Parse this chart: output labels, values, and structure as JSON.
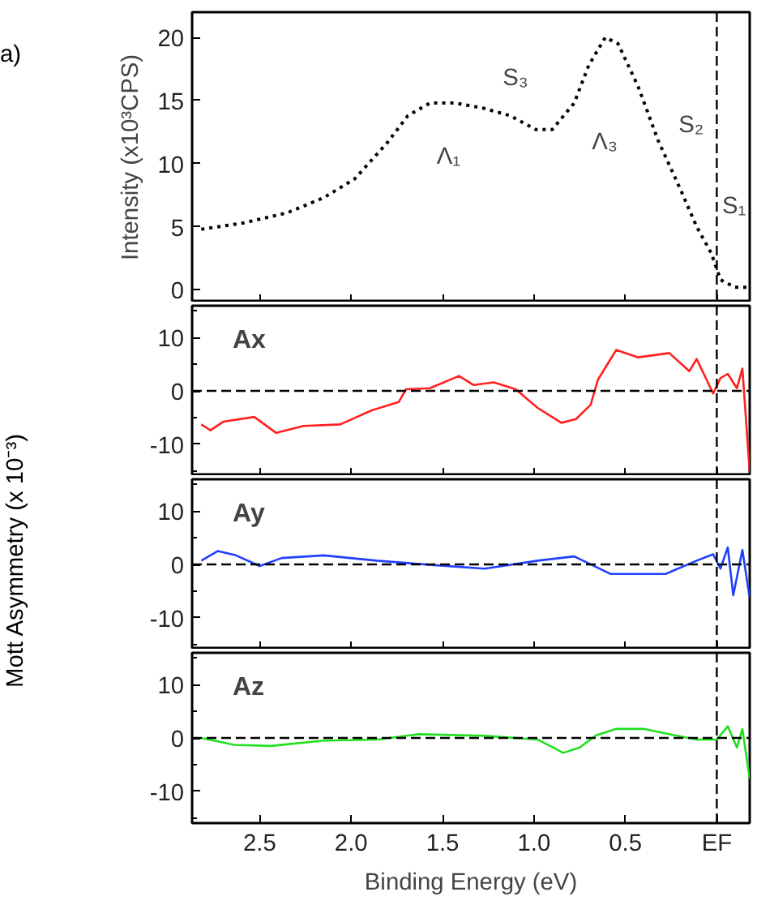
{
  "chart_data": [
    {
      "type": "line",
      "ylabel": "Intensity (x10³CPS)",
      "annotations": [
        "a)",
        "Λ₁",
        "S₃",
        "Λ₃",
        "S₂",
        "S₁"
      ],
      "xlim": [
        2.87,
        -0.18
      ],
      "xticks": [
        {
          "value": 2.5,
          "label": null
        },
        {
          "value": 2,
          "label": null
        },
        {
          "value": 1.5,
          "label": null
        },
        {
          "value": 1,
          "label": null
        },
        {
          "value": 0.5,
          "label": null
        },
        {
          "value": 0,
          "label": null
        }
      ],
      "ylim": [
        -1,
        22
      ],
      "yticks": [
        0,
        5,
        10,
        15,
        20
      ],
      "tick_labels": "y",
      "marker": "none",
      "line_style": "dotted",
      "ref_lines": [
        {
          "axis": "x",
          "value": 0,
          "line_style": "dashed",
          "color": "#000000"
        }
      ],
      "series": [
        {
          "color": "#000000",
          "x": [
            2.82,
            2.59,
            2.35,
            2.15,
            1.98,
            1.8,
            1.69,
            1.57,
            1.43,
            1.28,
            1.13,
            0.99,
            0.9,
            0.78,
            0.7,
            0.61,
            0.54,
            0.43,
            0.32,
            0.2,
            0.11,
            0.03,
            -0.02,
            -0.1,
            -0.18
          ],
          "values": [
            4.8,
            5.3,
            6.1,
            7.3,
            8.8,
            11.7,
            13.8,
            14.8,
            14.8,
            14.4,
            13.8,
            12.7,
            12.7,
            14.8,
            17.8,
            20,
            19.5,
            16.1,
            11.8,
            8,
            5,
            2.9,
            0.8,
            0.2,
            0.2
          ]
        }
      ]
    },
    {
      "type": "line",
      "xlim": [
        2.87,
        -0.18
      ],
      "xticks": [
        {
          "value": 2.5,
          "label": null
        },
        {
          "value": 2,
          "label": null
        },
        {
          "value": 1.5,
          "label": null
        },
        {
          "value": 1,
          "label": null
        },
        {
          "value": 0.5,
          "label": null
        },
        {
          "value": 0,
          "label": null
        }
      ],
      "ylim": [
        -16,
        16
      ],
      "yticks": [
        {
          "value": -15,
          "label": null
        },
        -10,
        {
          "value": -5,
          "label": null
        },
        0,
        {
          "value": 5,
          "label": null
        },
        10,
        {
          "value": 15,
          "label": null
        }
      ],
      "tick_labels": "y",
      "line_style": "solid",
      "ref_lines": [
        {
          "axis": "x",
          "value": 0,
          "line_style": "dashed",
          "color": "#000000"
        },
        {
          "axis": "y",
          "value": 0,
          "line_style": "dashed",
          "color": "#000000"
        }
      ],
      "series": [
        {
          "name": "Ax",
          "color": "#ff2020",
          "x": [
            2.82,
            2.77,
            2.7,
            2.53,
            2.41,
            2.26,
            2.06,
            1.89,
            1.74,
            1.7,
            1.57,
            1.41,
            1.33,
            1.22,
            1.1,
            0.98,
            0.85,
            0.77,
            0.69,
            0.65,
            0.55,
            0.43,
            0.26,
            0.15,
            0.11,
            0.02,
            -0.02,
            -0.06,
            -0.11,
            -0.14,
            -0.18
          ],
          "values": [
            -6.3,
            -7.4,
            -5.8,
            -4.9,
            -7.9,
            -6.6,
            -6.3,
            -3.7,
            -2.1,
            0.3,
            0.5,
            2.8,
            1.1,
            1.6,
            0.3,
            -3.2,
            -6,
            -5.3,
            -2.6,
            2.1,
            7.7,
            6.3,
            7.1,
            3.7,
            6,
            -0.5,
            2.4,
            3.2,
            0.5,
            4.2,
            -15.3
          ]
        }
      ]
    },
    {
      "type": "line",
      "ylabel": "Mott Asymmetry (x 10⁻³)",
      "xlim": [
        2.87,
        -0.18
      ],
      "xticks": [
        {
          "value": 2.5,
          "label": null
        },
        {
          "value": 2,
          "label": null
        },
        {
          "value": 1.5,
          "label": null
        },
        {
          "value": 1,
          "label": null
        },
        {
          "value": 0.5,
          "label": null
        },
        {
          "value": 0,
          "label": null
        }
      ],
      "ylim": [
        -16,
        16
      ],
      "yticks": [
        {
          "value": -15,
          "label": null
        },
        -10,
        {
          "value": -5,
          "label": null
        },
        0,
        {
          "value": 5,
          "label": null
        },
        10,
        {
          "value": 15,
          "label": null
        }
      ],
      "tick_labels": "y",
      "line_style": "solid",
      "ref_lines": [
        {
          "axis": "x",
          "value": 0,
          "line_style": "dashed",
          "color": "#000000"
        },
        {
          "axis": "y",
          "value": 0,
          "line_style": "dashed",
          "color": "#000000"
        }
      ],
      "series": [
        {
          "name": "Ay",
          "color": "#2040ff",
          "x": [
            2.82,
            2.73,
            2.63,
            2.5,
            2.38,
            2.15,
            1.86,
            1.56,
            1.27,
            0.98,
            0.78,
            0.58,
            0.28,
            0.11,
            0.02,
            -0.02,
            -0.06,
            -0.09,
            -0.14,
            -0.18
          ],
          "values": [
            0.7,
            2.5,
            1.7,
            -0.3,
            1.2,
            1.7,
            0.7,
            -0.1,
            -0.8,
            0.7,
            1.5,
            -1.8,
            -1.8,
            0.7,
            1.9,
            -0.8,
            3.2,
            -5.8,
            2.7,
            -6.3
          ]
        }
      ]
    },
    {
      "type": "line",
      "xlabel": "Binding Energy (eV)",
      "xlim": [
        2.87,
        -0.18
      ],
      "xticks": [
        {
          "value": 2.5,
          "label": "2.5"
        },
        {
          "value": 2,
          "label": "2.0"
        },
        {
          "value": 1.5,
          "label": "1.5"
        },
        {
          "value": 1,
          "label": "1.0"
        },
        {
          "value": 0.5,
          "label": "0.5"
        },
        {
          "value": 0,
          "label": "EF"
        }
      ],
      "ylim": [
        -16,
        16
      ],
      "yticks": [
        {
          "value": -15,
          "label": null
        },
        -10,
        {
          "value": -5,
          "label": null
        },
        0,
        {
          "value": 5,
          "label": null
        },
        10,
        {
          "value": 15,
          "label": null
        }
      ],
      "line_style": "solid",
      "ref_lines": [
        {
          "axis": "x",
          "value": 0,
          "line_style": "dashed",
          "color": "#000000"
        },
        {
          "axis": "y",
          "value": 0,
          "line_style": "dashed",
          "color": "#000000"
        }
      ],
      "series": [
        {
          "name": "Az",
          "color": "#20e020",
          "x": [
            2.82,
            2.64,
            2.44,
            2.15,
            1.86,
            1.63,
            1.27,
            0.98,
            0.84,
            0.75,
            0.66,
            0.55,
            0.4,
            0.23,
            0.11,
            0,
            -0.06,
            -0.11,
            -0.14,
            -0.18
          ],
          "values": [
            0,
            -1.3,
            -1.5,
            -0.5,
            -0.3,
            0.7,
            0.4,
            -0.3,
            -2.8,
            -1.8,
            0.5,
            1.7,
            1.7,
            0.5,
            -0.3,
            -0.3,
            2.2,
            -1.8,
            1.7,
            -7.7
          ]
        }
      ]
    }
  ]
}
